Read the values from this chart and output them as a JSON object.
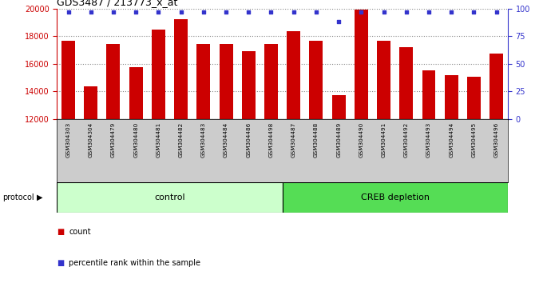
{
  "title": "GDS3487 / 213773_x_at",
  "samples": [
    "GSM304303",
    "GSM304304",
    "GSM304479",
    "GSM304480",
    "GSM304481",
    "GSM304482",
    "GSM304483",
    "GSM304484",
    "GSM304486",
    "GSM304498",
    "GSM304487",
    "GSM304488",
    "GSM304489",
    "GSM304490",
    "GSM304491",
    "GSM304492",
    "GSM304493",
    "GSM304494",
    "GSM304495",
    "GSM304496"
  ],
  "counts": [
    17650,
    14350,
    17450,
    15750,
    18500,
    19200,
    17450,
    17450,
    16900,
    17450,
    18350,
    17650,
    13700,
    19900,
    17650,
    17200,
    15500,
    15150,
    15050,
    16750
  ],
  "percentile_ranks": [
    97,
    97,
    97,
    97,
    97,
    97,
    97,
    97,
    97,
    97,
    97,
    97,
    88,
    97,
    97,
    97,
    97,
    97,
    97,
    97
  ],
  "ctrl_count": 10,
  "creb_count": 10,
  "ylim_left": [
    12000,
    20000
  ],
  "ylim_right": [
    0,
    100
  ],
  "bar_color": "#cc0000",
  "dot_color": "#3333cc",
  "control_color": "#ccffcc",
  "creb_color": "#55dd55",
  "bg_color": "#cccccc",
  "legend_count_color": "#cc0000",
  "legend_pct_color": "#3333cc",
  "grid_color": "#888888"
}
